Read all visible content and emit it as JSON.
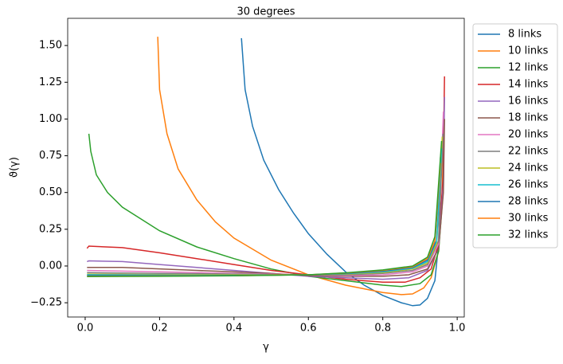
{
  "chart_data": {
    "type": "line",
    "title": "30 degrees",
    "x_label": "γ",
    "y_label": "ϑ(γ)",
    "xlim": [
      -0.047,
      1.019
    ],
    "ylim": [
      -0.347,
      1.685
    ],
    "xticks": [
      {
        "value": 0,
        "label": "0.0"
      },
      {
        "value": 0.2,
        "label": "0.2"
      },
      {
        "value": 0.4,
        "label": "0.4"
      },
      {
        "value": 0.6,
        "label": "0.6"
      },
      {
        "value": 0.8,
        "label": "0.8"
      },
      {
        "value": 1.0,
        "label": "1.0"
      }
    ],
    "yticks": [
      {
        "value": -0.25,
        "label": "−0.25"
      },
      {
        "value": 0,
        "label": "0.00"
      },
      {
        "value": 0.25,
        "label": "0.25"
      },
      {
        "value": 0.5,
        "label": "0.50"
      },
      {
        "value": 0.75,
        "label": "0.75"
      },
      {
        "value": 1.0,
        "label": "1.00"
      },
      {
        "value": 1.25,
        "label": "1.25"
      },
      {
        "value": 1.5,
        "label": "1.50"
      }
    ],
    "grid": false,
    "legend": "outside-right",
    "series": [
      {
        "name": "8 links",
        "color": "#1f77b4",
        "x": [
          0.42,
          0.43,
          0.45,
          0.48,
          0.52,
          0.56,
          0.6,
          0.65,
          0.7,
          0.75,
          0.8,
          0.85,
          0.88,
          0.9,
          0.92,
          0.94,
          0.95,
          0.955
        ],
        "values": [
          1.55,
          1.2,
          0.95,
          0.72,
          0.52,
          0.36,
          0.22,
          0.08,
          -0.04,
          -0.13,
          -0.2,
          -0.25,
          -0.27,
          -0.265,
          -0.22,
          -0.1,
          0.15,
          0.74
        ]
      },
      {
        "name": "10 links",
        "color": "#ff7f0e",
        "x": [
          0.195,
          0.2,
          0.22,
          0.25,
          0.3,
          0.35,
          0.4,
          0.5,
          0.6,
          0.7,
          0.8,
          0.85,
          0.88,
          0.91,
          0.93,
          0.95,
          0.96,
          0.963
        ],
        "values": [
          1.56,
          1.2,
          0.9,
          0.66,
          0.45,
          0.3,
          0.19,
          0.04,
          -0.06,
          -0.13,
          -0.18,
          -0.195,
          -0.19,
          -0.15,
          -0.08,
          0.1,
          0.5,
          0.9
        ]
      },
      {
        "name": "12 links",
        "color": "#2ca02c",
        "x": [
          0.01,
          0.012,
          0.015,
          0.03,
          0.06,
          0.1,
          0.2,
          0.3,
          0.4,
          0.5,
          0.6,
          0.7,
          0.8,
          0.85,
          0.9,
          0.93,
          0.95,
          0.962,
          0.965
        ],
        "values": [
          0.9,
          0.85,
          0.78,
          0.62,
          0.5,
          0.4,
          0.24,
          0.13,
          0.05,
          -0.02,
          -0.07,
          -0.1,
          -0.13,
          -0.14,
          -0.12,
          -0.06,
          0.1,
          0.5,
          1.05
        ]
      },
      {
        "name": "14 links",
        "color": "#d62728",
        "x": [
          0.005,
          0.01,
          0.1,
          0.2,
          0.3,
          0.4,
          0.5,
          0.6,
          0.7,
          0.8,
          0.86,
          0.9,
          0.93,
          0.95,
          0.962,
          0.966
        ],
        "values": [
          0.12,
          0.135,
          0.125,
          0.09,
          0.05,
          0.01,
          -0.03,
          -0.06,
          -0.09,
          -0.11,
          -0.11,
          -0.08,
          -0.02,
          0.15,
          0.6,
          1.29
        ]
      },
      {
        "name": "16 links",
        "color": "#9467bd",
        "x": [
          0.005,
          0.01,
          0.1,
          0.2,
          0.3,
          0.4,
          0.5,
          0.6,
          0.7,
          0.8,
          0.87,
          0.92,
          0.95,
          0.963,
          0.966
        ],
        "values": [
          0.03,
          0.035,
          0.03,
          0.01,
          -0.01,
          -0.03,
          -0.05,
          -0.07,
          -0.08,
          -0.09,
          -0.08,
          -0.03,
          0.12,
          0.55,
          1.15
        ]
      },
      {
        "name": "18 links",
        "color": "#8c564b",
        "x": [
          0.005,
          0.1,
          0.3,
          0.5,
          0.6,
          0.7,
          0.8,
          0.87,
          0.92,
          0.95,
          0.963,
          0.966
        ],
        "values": [
          -0.01,
          -0.01,
          -0.03,
          -0.05,
          -0.065,
          -0.07,
          -0.07,
          -0.06,
          -0.02,
          0.12,
          0.5,
          1.0
        ]
      },
      {
        "name": "20 links",
        "color": "#e377c2",
        "x": [
          0.005,
          0.2,
          0.4,
          0.6,
          0.7,
          0.8,
          0.88,
          0.92,
          0.95,
          0.963
        ],
        "values": [
          -0.03,
          -0.04,
          -0.05,
          -0.06,
          -0.065,
          -0.06,
          -0.04,
          0.0,
          0.15,
          1.05
        ]
      },
      {
        "name": "22 links",
        "color": "#7f7f7f",
        "x": [
          0.005,
          0.2,
          0.4,
          0.6,
          0.7,
          0.8,
          0.88,
          0.92,
          0.95,
          0.962
        ],
        "values": [
          -0.045,
          -0.05,
          -0.055,
          -0.06,
          -0.06,
          -0.05,
          -0.03,
          0.01,
          0.17,
          0.9
        ]
      },
      {
        "name": "24 links",
        "color": "#bcbd22",
        "x": [
          0.005,
          0.2,
          0.4,
          0.6,
          0.7,
          0.8,
          0.88,
          0.92,
          0.945,
          0.96
        ],
        "values": [
          -0.055,
          -0.058,
          -0.06,
          -0.06,
          -0.055,
          -0.045,
          -0.02,
          0.02,
          0.15,
          0.88
        ]
      },
      {
        "name": "26 links",
        "color": "#17becf",
        "x": [
          0.005,
          0.2,
          0.4,
          0.6,
          0.7,
          0.8,
          0.88,
          0.92,
          0.945,
          0.958
        ],
        "values": [
          -0.06,
          -0.062,
          -0.063,
          -0.06,
          -0.052,
          -0.04,
          -0.015,
          0.03,
          0.17,
          0.8
        ]
      },
      {
        "name": "28 links",
        "color": "#1f77b4",
        "x": [
          0.005,
          0.2,
          0.4,
          0.6,
          0.7,
          0.8,
          0.88,
          0.92,
          0.94,
          0.952
        ],
        "values": [
          -0.065,
          -0.065,
          -0.065,
          -0.06,
          -0.05,
          -0.035,
          -0.01,
          0.04,
          0.15,
          0.6
        ]
      },
      {
        "name": "30 links",
        "color": "#ff7f0e",
        "x": [
          0.005,
          0.2,
          0.4,
          0.6,
          0.7,
          0.8,
          0.88,
          0.92,
          0.94,
          0.955
        ],
        "values": [
          -0.07,
          -0.068,
          -0.066,
          -0.06,
          -0.048,
          -0.03,
          -0.005,
          0.05,
          0.17,
          0.7
        ]
      },
      {
        "name": "32 links",
        "color": "#2ca02c",
        "x": [
          0.005,
          0.2,
          0.4,
          0.6,
          0.7,
          0.8,
          0.88,
          0.92,
          0.94,
          0.958
        ],
        "values": [
          -0.072,
          -0.07,
          -0.067,
          -0.06,
          -0.046,
          -0.027,
          0.0,
          0.06,
          0.2,
          0.85
        ]
      }
    ]
  }
}
